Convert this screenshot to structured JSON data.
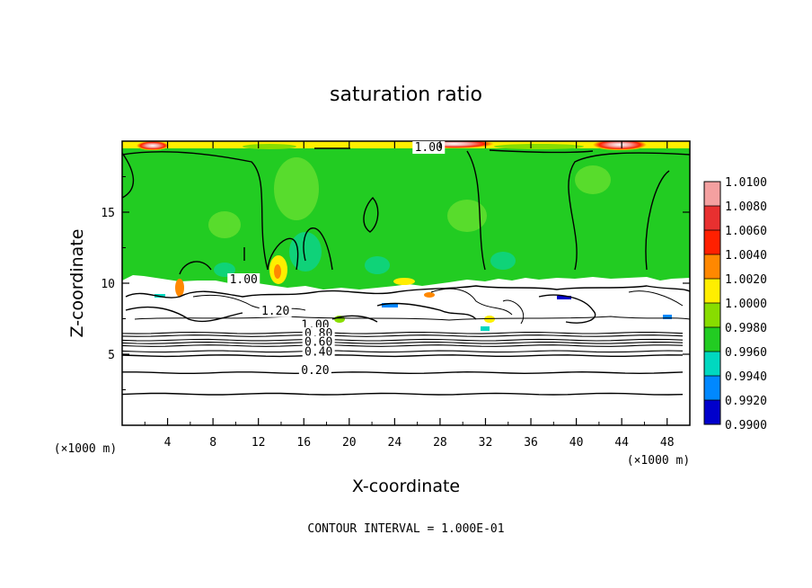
{
  "chart_data": {
    "type": "heatmap",
    "title": "saturation ratio",
    "xlabel": "X-coordinate",
    "ylabel": "Z-coordinate",
    "x_unit": "(×1000 m)",
    "y_unit": "(×1000 m)",
    "xlim": [
      0,
      50
    ],
    "ylim": [
      0,
      20
    ],
    "x_ticks": [
      4,
      8,
      12,
      16,
      20,
      24,
      28,
      32,
      36,
      40,
      44,
      48
    ],
    "y_ticks": [
      5,
      10,
      15
    ],
    "colorbar": {
      "levels": [
        "1.0100",
        "1.0080",
        "1.0060",
        "1.0040",
        "1.0020",
        "1.0000",
        "0.9980",
        "0.9960",
        "0.9940",
        "0.9920",
        "0.9900"
      ],
      "colors": [
        "#f4a0a0",
        "#e83030",
        "#ff2000",
        "#ff8800",
        "#ffee00",
        "#88dd00",
        "#22cc22",
        "#00d8c0",
        "#0088ff",
        "#0000cc",
        "#550099"
      ]
    },
    "contour_labels": [
      {
        "text": "1.00",
        "x": 27.0,
        "y": 19.3
      },
      {
        "text": "1.00",
        "x": 10.7,
        "y": 10.0
      },
      {
        "text": "1.20",
        "x": 13.5,
        "y": 7.8
      },
      {
        "text": "1.00",
        "x": 17.0,
        "y": 6.8
      },
      {
        "text": "0.80",
        "x": 17.3,
        "y": 6.2
      },
      {
        "text": "0.60",
        "x": 17.3,
        "y": 5.6
      },
      {
        "text": "0.40",
        "x": 17.3,
        "y": 4.9
      },
      {
        "text": "0.20",
        "x": 17.0,
        "y": 3.6
      }
    ],
    "horizontal_contours_y": [
      2.2,
      3.7,
      4.9,
      5.2,
      5.6,
      5.8,
      6.0,
      6.3,
      6.5
    ],
    "contour_interval_text": "CONTOUR INTERVAL = 1.000E-01"
  }
}
